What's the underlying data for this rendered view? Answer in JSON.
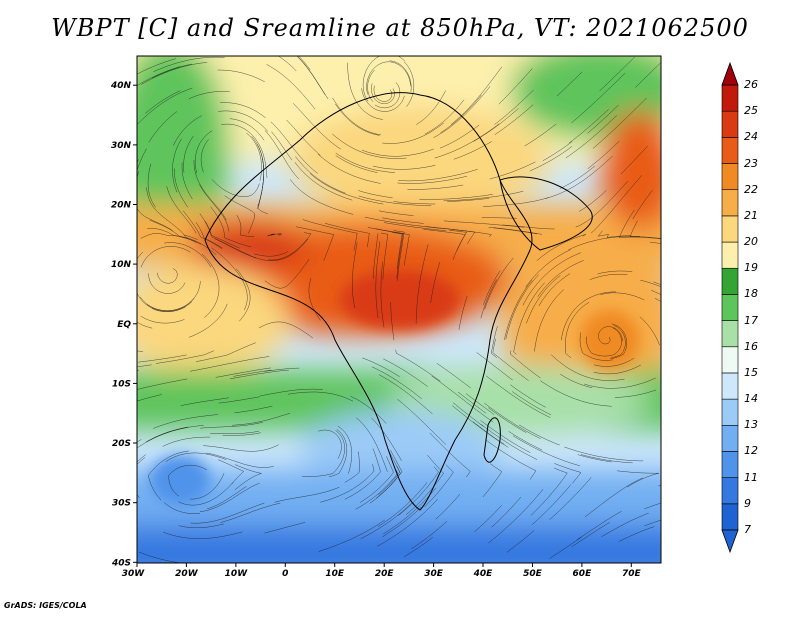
{
  "title": "WBPT [C] and Sreamline at 850hPa, VT: 2021062500",
  "footer": "GrADS: IGES/COLA",
  "lon_ticks": [
    "30W",
    "20W",
    "10W",
    "0",
    "10E",
    "20E",
    "30E",
    "40E",
    "50E",
    "60E",
    "70E"
  ],
  "lat_ticks": [
    "40N",
    "30N",
    "20N",
    "10N",
    "EQ",
    "10S",
    "20S",
    "30S",
    "40S"
  ],
  "colorbar": {
    "labels": [
      "7",
      "9",
      "11",
      "12",
      "13",
      "14",
      "15",
      "16",
      "17",
      "18",
      "19",
      "20",
      "21",
      "22",
      "23",
      "24",
      "25",
      "26"
    ],
    "colors": [
      "#1f62d2",
      "#3478e0",
      "#4f93ea",
      "#72aff2",
      "#9ccbf8",
      "#cde7fb",
      "#eefaf4",
      "#a8e0a8",
      "#5ec45c",
      "#34a535",
      "#fdf0ad",
      "#fbd77e",
      "#f7ad48",
      "#f08a22",
      "#e95c18",
      "#d93a12",
      "#c11a0c"
    ]
  },
  "map": {
    "lon_range": [
      -30,
      76
    ],
    "lat_range": [
      -40,
      45
    ],
    "variable": "Wet-bulb potential temperature",
    "level": "850hPa",
    "valid_time": "2021062500"
  }
}
